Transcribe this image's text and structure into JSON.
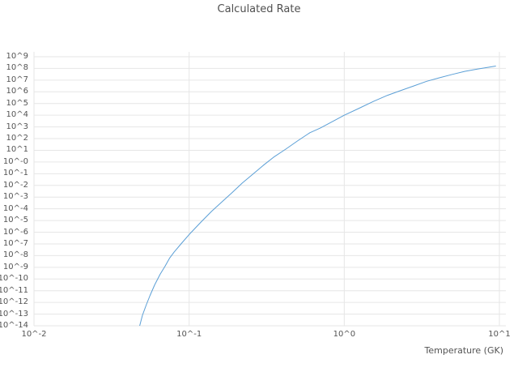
{
  "chart_data": {
    "type": "line",
    "title": "Calculated Rate",
    "xlabel": "Temperature (GK)",
    "ylabel": "",
    "x_scale": "log",
    "y_scale": "log",
    "xlim_log10": [
      -2,
      1
    ],
    "ylim_log10": [
      -14,
      9
    ],
    "grid": true,
    "grid_color": "#e6e6e6",
    "line_color": "#5b9fd6",
    "x_ticks": [
      {
        "label": "10^-2",
        "log10": -2
      },
      {
        "label": "10^-1",
        "log10": -1
      },
      {
        "label": "10^0",
        "log10": 0
      },
      {
        "label": "10^1",
        "log10": 1
      }
    ],
    "y_ticks": [
      {
        "label": "10^9",
        "log10": 9
      },
      {
        "label": "10^8",
        "log10": 8
      },
      {
        "label": "10^7",
        "log10": 7
      },
      {
        "label": "10^6",
        "log10": 6
      },
      {
        "label": "10^5",
        "log10": 5
      },
      {
        "label": "10^4",
        "log10": 4
      },
      {
        "label": "10^3",
        "log10": 3
      },
      {
        "label": "10^2",
        "log10": 2
      },
      {
        "label": "10^1",
        "log10": 1
      },
      {
        "label": "10^-0",
        "log10": 0
      },
      {
        "label": "10^-1",
        "log10": -1
      },
      {
        "label": "10^-2",
        "log10": -2
      },
      {
        "label": "10^-3",
        "log10": -3
      },
      {
        "label": "10^-4",
        "log10": -4
      },
      {
        "label": "10^-5",
        "log10": -5
      },
      {
        "label": "10^-6",
        "log10": -6
      },
      {
        "label": "10^-7",
        "log10": -7
      },
      {
        "label": "10^-8",
        "log10": -8
      },
      {
        "label": "10^-9",
        "log10": -9
      },
      {
        "label": "10^-10",
        "log10": -10
      },
      {
        "label": "10^-11",
        "log10": -11
      },
      {
        "label": "10^-12",
        "log10": -12
      },
      {
        "label": "10^-13",
        "log10": -13
      },
      {
        "label": "10^-14",
        "log10": -14
      }
    ],
    "series": [
      {
        "name": "calculated-rate",
        "x_GK": [
          0.048,
          0.05,
          0.053,
          0.056,
          0.06,
          0.065,
          0.07,
          0.075,
          0.08,
          0.09,
          0.1,
          0.12,
          0.14,
          0.16,
          0.19,
          0.22,
          0.26,
          0.3,
          0.35,
          0.42,
          0.5,
          0.6,
          0.7,
          0.85,
          1.0,
          1.25,
          1.55,
          1.9,
          2.3,
          2.8,
          3.4,
          4.1,
          5.0,
          6.0,
          7.2,
          8.5,
          9.5
        ],
        "log10_rate": [
          -14.0,
          -13.1,
          -12.2,
          -11.4,
          -10.5,
          -9.6,
          -8.9,
          -8.2,
          -7.7,
          -6.9,
          -6.2,
          -5.1,
          -4.2,
          -3.5,
          -2.6,
          -1.8,
          -1.0,
          -0.3,
          0.4,
          1.1,
          1.8,
          2.5,
          2.9,
          3.5,
          4.0,
          4.6,
          5.2,
          5.7,
          6.1,
          6.5,
          6.9,
          7.2,
          7.5,
          7.75,
          7.95,
          8.1,
          8.2
        ]
      }
    ]
  }
}
